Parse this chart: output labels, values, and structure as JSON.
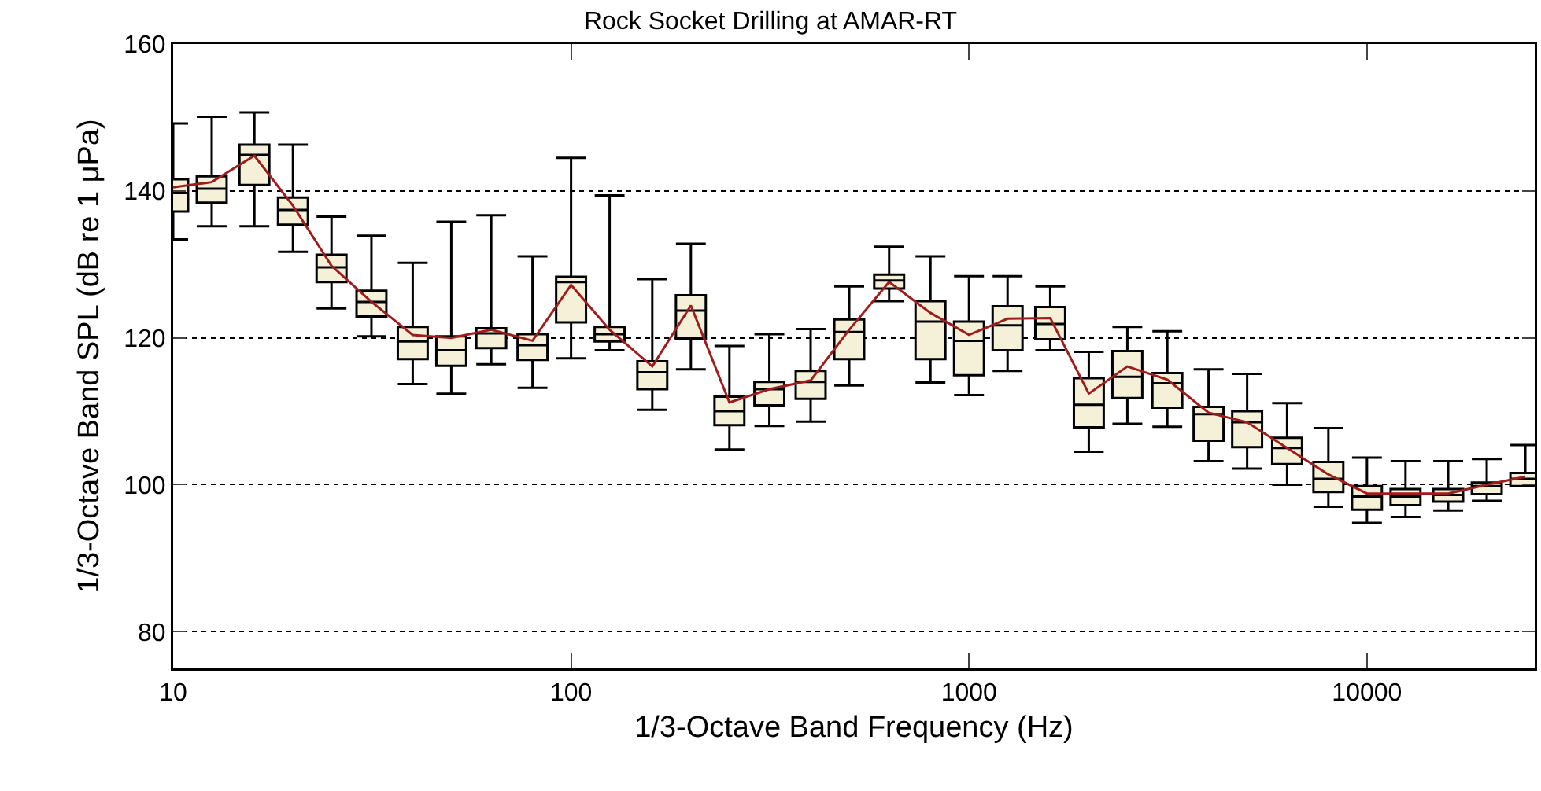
{
  "chart_data": {
    "type": "box",
    "title": "Rock Socket Drilling at AMAR-RT",
    "xlabel": "1/3-Octave Band Frequency (Hz)",
    "ylabel": "1/3-Octave Band SPL (dB re 1 μPa)",
    "x": [
      10,
      12.5,
      16,
      20,
      25,
      31.5,
      40,
      50,
      63,
      80,
      100,
      125,
      160,
      200,
      250,
      315,
      400,
      500,
      630,
      800,
      1000,
      1250,
      1600,
      2000,
      2500,
      3150,
      4000,
      5000,
      6300,
      8000,
      10000,
      12500,
      16000,
      20000,
      25000
    ],
    "color": "#f4f1d8",
    "boxes": [
      {
        "low": 133.4,
        "q1": 137.2,
        "median": 139.7,
        "q3": 141.6,
        "high": 149.2
      },
      {
        "low": 135.2,
        "q1": 138.4,
        "median": 140.3,
        "q3": 142.0,
        "high": 150.1
      },
      {
        "low": 135.2,
        "q1": 140.8,
        "median": 144.9,
        "q3": 146.3,
        "high": 150.7
      },
      {
        "low": 131.7,
        "q1": 135.4,
        "median": 137.4,
        "q3": 139.1,
        "high": 146.3
      },
      {
        "low": 124.0,
        "q1": 127.6,
        "median": 129.6,
        "q3": 131.3,
        "high": 136.5
      },
      {
        "low": 120.2,
        "q1": 122.9,
        "median": 124.9,
        "q3": 126.4,
        "high": 133.9
      },
      {
        "low": 113.7,
        "q1": 117.1,
        "median": 119.5,
        "q3": 121.5,
        "high": 130.2
      },
      {
        "low": 112.4,
        "q1": 116.2,
        "median": 118.3,
        "q3": 120.2,
        "high": 135.8
      },
      {
        "low": 116.4,
        "q1": 118.6,
        "median": 120.6,
        "q3": 121.3,
        "high": 136.7
      },
      {
        "low": 113.2,
        "q1": 117.0,
        "median": 119.0,
        "q3": 120.5,
        "high": 131.1
      },
      {
        "low": 117.2,
        "q1": 122.1,
        "median": 127.6,
        "q3": 128.3,
        "high": 144.5
      },
      {
        "low": 118.3,
        "q1": 119.5,
        "median": 120.5,
        "q3": 121.5,
        "high": 139.4
      },
      {
        "low": 110.2,
        "q1": 113.0,
        "median": 115.3,
        "q3": 116.8,
        "high": 128.0
      },
      {
        "low": 115.7,
        "q1": 119.9,
        "median": 123.7,
        "q3": 125.8,
        "high": 132.8
      },
      {
        "low": 104.8,
        "q1": 108.1,
        "median": 110.0,
        "q3": 112.0,
        "high": 118.9
      },
      {
        "low": 108.0,
        "q1": 110.8,
        "median": 113.0,
        "q3": 114.0,
        "high": 120.5
      },
      {
        "low": 108.6,
        "q1": 111.7,
        "median": 114.0,
        "q3": 115.5,
        "high": 121.2
      },
      {
        "low": 113.5,
        "q1": 117.1,
        "median": 120.8,
        "q3": 122.5,
        "high": 127.0
      },
      {
        "low": 125.0,
        "q1": 126.7,
        "median": 127.8,
        "q3": 128.6,
        "high": 132.4
      },
      {
        "low": 113.9,
        "q1": 117.1,
        "median": 122.2,
        "q3": 125.0,
        "high": 131.1
      },
      {
        "low": 112.2,
        "q1": 114.9,
        "median": 119.6,
        "q3": 122.2,
        "high": 128.4
      },
      {
        "low": 115.5,
        "q1": 118.3,
        "median": 121.7,
        "q3": 124.3,
        "high": 128.4
      },
      {
        "low": 118.3,
        "q1": 119.8,
        "median": 121.9,
        "q3": 124.2,
        "high": 127.0
      },
      {
        "low": 104.5,
        "q1": 107.8,
        "median": 110.9,
        "q3": 114.5,
        "high": 118.1
      },
      {
        "low": 108.3,
        "q1": 111.8,
        "median": 114.7,
        "q3": 118.2,
        "high": 121.5
      },
      {
        "low": 107.9,
        "q1": 110.5,
        "median": 113.8,
        "q3": 115.2,
        "high": 120.9
      },
      {
        "low": 103.2,
        "q1": 106.0,
        "median": 109.6,
        "q3": 110.6,
        "high": 115.7
      },
      {
        "low": 102.2,
        "q1": 105.1,
        "median": 108.5,
        "q3": 110.0,
        "high": 115.1
      },
      {
        "low": 100.0,
        "q1": 102.8,
        "median": 105.0,
        "q3": 106.4,
        "high": 111.1
      },
      {
        "low": 97.0,
        "q1": 99.0,
        "median": 100.8,
        "q3": 103.1,
        "high": 107.7
      },
      {
        "low": 94.8,
        "q1": 96.6,
        "median": 98.4,
        "q3": 99.8,
        "high": 103.7
      },
      {
        "low": 95.6,
        "q1": 97.2,
        "median": 98.4,
        "q3": 99.4,
        "high": 103.2
      },
      {
        "low": 96.5,
        "q1": 97.7,
        "median": 98.6,
        "q3": 99.4,
        "high": 103.2
      },
      {
        "low": 97.8,
        "q1": 98.7,
        "median": 99.8,
        "q3": 100.3,
        "high": 103.5
      },
      {
        "low": 99.8,
        "q1": 99.8,
        "median": 100.8,
        "q3": 101.6,
        "high": 105.4
      }
    ],
    "series": [
      {
        "type": "line",
        "color": "#a01c1c",
        "values": [
          140.5,
          141.2,
          144.8,
          138.0,
          129.8,
          124.9,
          120.4,
          120.0,
          121.1,
          119.6,
          127.2,
          121.1,
          116.1,
          124.4,
          111.2,
          113.0,
          114.2,
          121.1,
          127.6,
          123.4,
          120.4,
          122.6,
          122.7,
          112.4,
          116.1,
          114.3,
          109.8,
          108.5,
          105.0,
          101.4,
          98.8,
          98.8,
          98.8,
          100.0,
          101.1
        ]
      }
    ],
    "log": "x",
    "xlim": [
      10,
      26400
    ],
    "xticks": [
      10,
      100,
      1000,
      10000
    ],
    "ylim": [
      75,
      160
    ],
    "yticks": [
      80,
      100,
      120,
      140,
      160
    ],
    "grid": "y"
  }
}
